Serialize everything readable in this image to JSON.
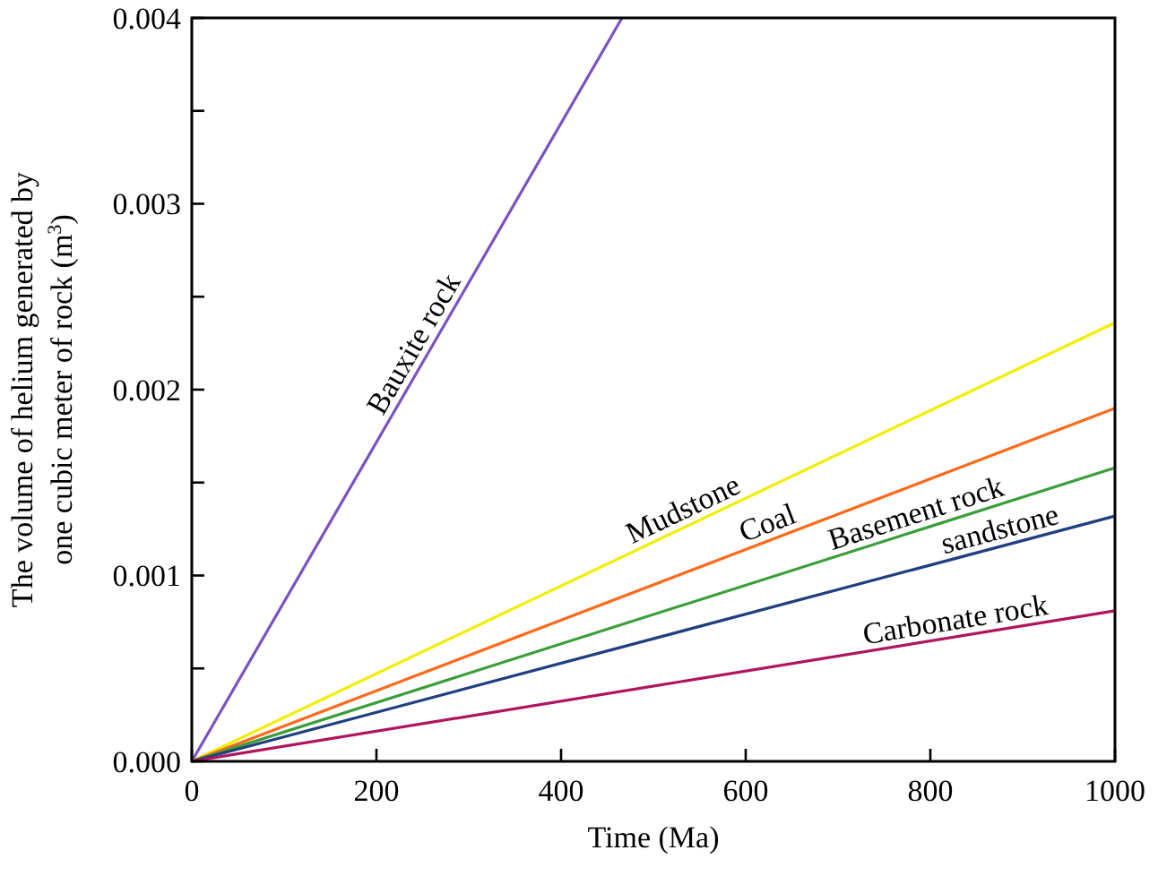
{
  "chart_data": {
    "type": "line",
    "xlabel": "Time (Ma)",
    "ylabel": "The volume of helium generated by one cubic meter of rock (m$^{3}$)",
    "xlim": [
      0,
      1000
    ],
    "ylim": [
      0,
      0.004
    ],
    "xticks": [
      0,
      200,
      400,
      600,
      800,
      1000
    ],
    "yticks": [
      {
        "value": 0,
        "label": "0.000"
      },
      {
        "value": 0.0005,
        "label": null
      },
      {
        "value": 0.001,
        "label": "0.001"
      },
      {
        "value": 0.0015,
        "label": null
      },
      {
        "value": 0.002,
        "label": "0.002"
      },
      {
        "value": 0.0025,
        "label": null
      },
      {
        "value": 0.003,
        "label": "0.003"
      },
      {
        "value": 0.0035,
        "label": null
      },
      {
        "value": 0.004,
        "label": "0.004"
      }
    ],
    "grid": false,
    "marker": "none",
    "line_style": "solid",
    "series": [
      {
        "name": "Bauxite rock",
        "color": "#7b52c0",
        "x": [
          0,
          466
        ],
        "values": [
          0,
          0.004
        ]
      },
      {
        "name": "Mudstone",
        "color": "#f2ee00",
        "x": [
          0,
          1000
        ],
        "values": [
          0,
          0.00236
        ]
      },
      {
        "name": "Coal",
        "color": "#ff6a1c",
        "x": [
          0,
          1000
        ],
        "values": [
          0,
          0.0019
        ]
      },
      {
        "name": "Basement rock",
        "color": "#3a9e3a",
        "x": [
          0,
          1000
        ],
        "values": [
          0,
          0.00158
        ]
      },
      {
        "name": "sandstone",
        "color": "#1f3f80",
        "x": [
          0,
          1000
        ],
        "values": [
          0,
          0.00132
        ]
      },
      {
        "name": "Carbonate rock",
        "color": "#b0145c",
        "x": [
          0,
          1000
        ],
        "values": [
          0,
          0.00081
        ]
      }
    ]
  }
}
